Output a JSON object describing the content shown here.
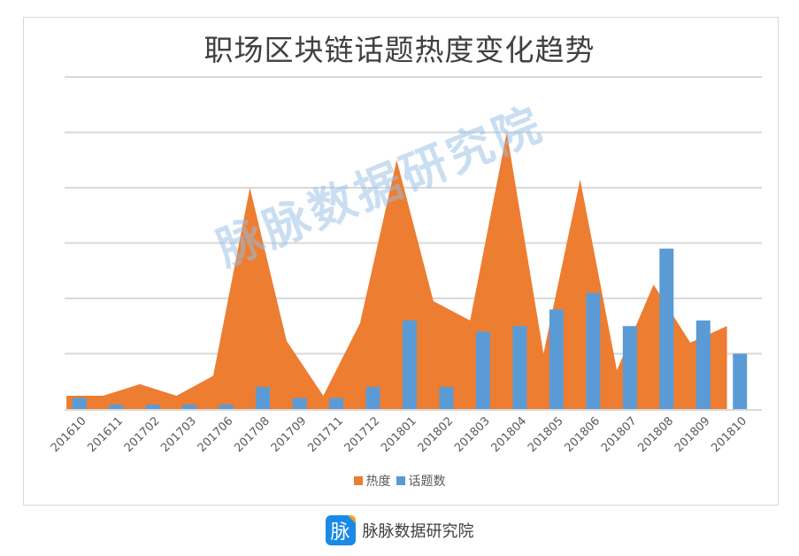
{
  "chart_data": {
    "type": "area+bar",
    "title": "职场区块链话题热度变化趋势",
    "categories": [
      "201610",
      "201611",
      "201702",
      "201703",
      "201706",
      "201708",
      "201709",
      "201711",
      "201712",
      "201801",
      "201802",
      "201803",
      "201804",
      "201805",
      "201806",
      "201807",
      "201808",
      "201809",
      "201810"
    ],
    "series": [
      {
        "name": "热度",
        "type": "area",
        "color": "#ed7d31",
        "values": [
          0.24,
          0.24,
          0.45,
          0.24,
          0.6,
          4.0,
          1.23,
          0.24,
          1.55,
          4.5,
          1.95,
          1.6,
          5.0,
          1.0,
          4.15,
          0.7,
          2.25,
          1.2,
          1.5
        ]
      },
      {
        "name": "话题数",
        "type": "bar",
        "color": "#5b9bd5",
        "values": [
          0.2,
          0.08,
          0.08,
          0.08,
          0.08,
          0.4,
          0.2,
          0.2,
          0.4,
          1.6,
          0.4,
          1.4,
          1.5,
          1.8,
          2.1,
          1.5,
          2.9,
          1.6,
          1.0
        ]
      }
    ],
    "xlabel": "",
    "ylabel": "",
    "ylim": [
      0,
      6
    ],
    "y_tick_labels_shown": false,
    "grid": true,
    "legend_position": "bottom"
  },
  "legend": {
    "items": [
      {
        "label": "热度",
        "color": "#ed7d31"
      },
      {
        "label": "话题数",
        "color": "#5b9bd5"
      }
    ]
  },
  "watermark": "脉脉数据研究院",
  "footer": {
    "logo_char": "脉",
    "brand": "脉脉数据研究院"
  }
}
